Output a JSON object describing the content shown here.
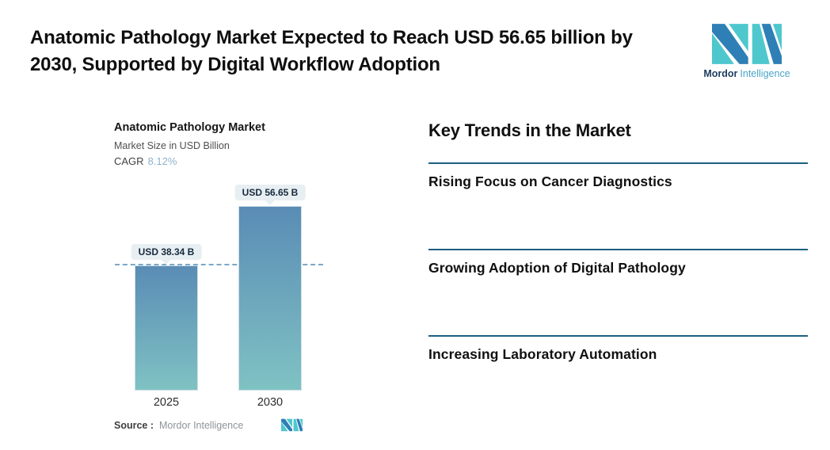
{
  "header": {
    "title": "Anatomic Pathology Market Expected to Reach USD 56.65 billion by 2030, Supported by Digital Workflow Adoption"
  },
  "brand": {
    "name_primary": "Mordor",
    "name_secondary": "Intelligence",
    "logo_teal": "#4ec7cd",
    "logo_blue": "#2e7fb5"
  },
  "chart": {
    "title": "Anatomic Pathology Market",
    "subtitle": "Market Size in USD Billion",
    "cagr_label": "CAGR",
    "cagr_value": "8.12%",
    "cagr_value_color": "#8fb2cb",
    "source_label": "Source :",
    "source_value": "Mordor Intelligence"
  },
  "chart_data": {
    "type": "bar",
    "title": "Anatomic Pathology Market",
    "subtitle": "Market Size in USD Billion",
    "unit": "USD Billion",
    "cagr": "8.12%",
    "categories": [
      "2025",
      "2030"
    ],
    "values": [
      38.34,
      56.65
    ],
    "value_labels": [
      "USD 38.34 B",
      "USD 56.65 B"
    ],
    "reference_line": 38.34,
    "ylim": [
      0,
      60
    ],
    "grid": false,
    "legend": false,
    "bar_gradient_top": "#5a8cb5",
    "bar_gradient_bottom": "#7fc2c3",
    "reference_line_color": "#7ca8c9"
  },
  "trends": {
    "heading": "Key Trends in the Market",
    "divider_color": "#1d5f80",
    "items": [
      "Rising Focus on Cancer Diagnostics",
      "Growing Adoption of Digital Pathology",
      "Increasing Laboratory Automation"
    ]
  }
}
